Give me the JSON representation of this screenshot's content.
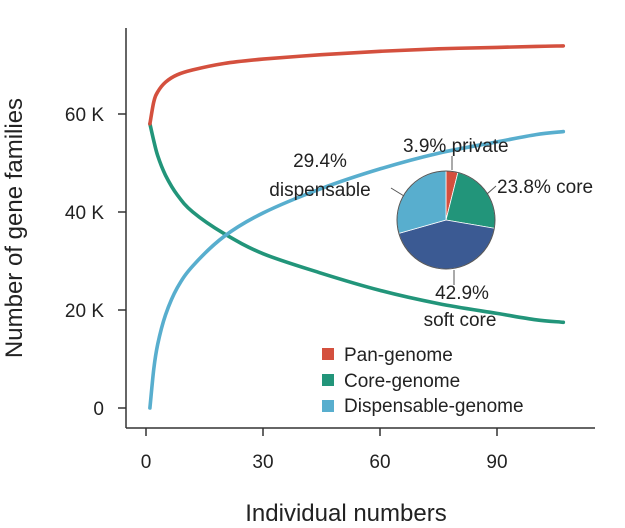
{
  "colors": {
    "pan": "#d4503e",
    "core": "#22957a",
    "dispensable": "#58aece",
    "soft_core": "#3b5a93",
    "axis": "#333333"
  },
  "chart_data": [
    {
      "type": "line",
      "title": "",
      "xlabel": "Individual numbers",
      "ylabel": "Number of gene families",
      "xlim": [
        0,
        108
      ],
      "ylim": [
        -5000,
        78000
      ],
      "x_ticks": [
        0,
        30,
        60,
        90
      ],
      "x_tick_labels": [
        "0",
        "30",
        "60",
        "90"
      ],
      "y_ticks": [
        0,
        20000,
        40000,
        60000
      ],
      "y_tick_labels": [
        "0",
        "20 K",
        "40 K",
        "60 K"
      ],
      "grid": false,
      "legend_position": "bottom-right",
      "series": [
        {
          "name": "Pan-genome",
          "color": "#d4503e",
          "x": [
            1,
            2,
            3,
            5,
            8,
            12,
            20,
            30,
            45,
            60,
            75,
            90,
            100,
            107
          ],
          "values": [
            58000,
            62500,
            64500,
            66500,
            68000,
            69000,
            70300,
            71200,
            72100,
            72800,
            73300,
            73600,
            73800,
            73900
          ]
        },
        {
          "name": "Core-genome",
          "color": "#22957a",
          "x": [
            1,
            2,
            3,
            5,
            8,
            12,
            20,
            30,
            45,
            60,
            75,
            90,
            100,
            107
          ],
          "values": [
            58000,
            54500,
            51500,
            47500,
            43500,
            40000,
            35600,
            31500,
            27500,
            24000,
            21300,
            19300,
            18000,
            17500
          ]
        },
        {
          "name": "Dispensable-genome",
          "color": "#58aece",
          "x": [
            1,
            2,
            3,
            5,
            8,
            12,
            20,
            30,
            45,
            60,
            75,
            90,
            100,
            107
          ],
          "values": [
            0,
            8000,
            13000,
            19000,
            24500,
            29000,
            35000,
            39800,
            44800,
            48800,
            52000,
            54300,
            55800,
            56400
          ]
        }
      ]
    },
    {
      "type": "pie",
      "labels": [
        "private",
        "core",
        "soft core",
        "dispensable"
      ],
      "values": [
        3.9,
        23.8,
        42.9,
        29.4
      ],
      "colors": [
        "#d4503e",
        "#22957a",
        "#3b5a93",
        "#58aece"
      ],
      "annotations": [
        "3.9% private",
        "23.8% core",
        "42.9%",
        "soft core",
        "29.4%",
        "dispensable"
      ]
    }
  ]
}
